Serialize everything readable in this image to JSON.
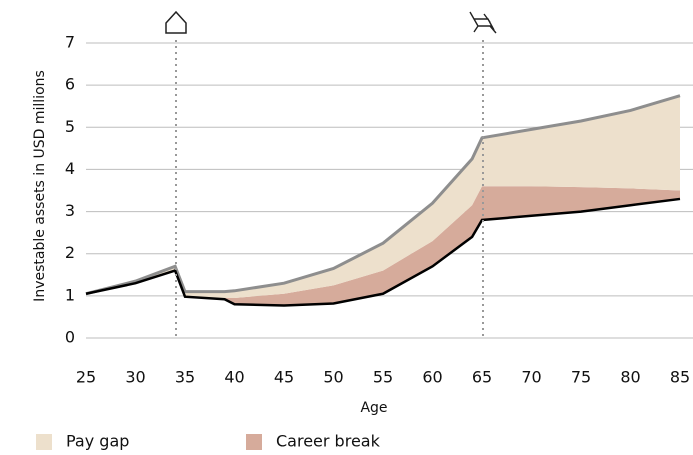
{
  "chart_data": {
    "type": "stacked_area",
    "x_label": "Age",
    "y_label": "Investable assets in USD millions",
    "x": [
      25,
      30,
      34,
      35,
      39,
      40,
      45,
      50,
      55,
      60,
      64,
      65,
      70,
      75,
      80,
      85
    ],
    "baseline": {
      "color": "#000000",
      "values": [
        1.05,
        1.3,
        1.6,
        0.98,
        0.92,
        0.8,
        0.77,
        0.82,
        1.05,
        1.7,
        2.4,
        2.8,
        2.9,
        3.0,
        3.15,
        3.3
      ]
    },
    "series": [
      {
        "name": "Career break",
        "color": "#d6ab9b",
        "values": [
          0,
          0,
          0,
          0,
          0.03,
          0.15,
          0.28,
          0.43,
          0.55,
          0.6,
          0.75,
          0.8,
          0.7,
          0.58,
          0.4,
          0.2
        ]
      },
      {
        "name": "Pay gap",
        "color": "#ede0cc",
        "line_color": "#8e8e8e",
        "values": [
          0,
          0.05,
          0.1,
          0.12,
          0.15,
          0.17,
          0.25,
          0.4,
          0.65,
          0.9,
          1.1,
          1.15,
          1.35,
          1.57,
          1.85,
          2.25
        ]
      }
    ],
    "legend_order": [
      1,
      0
    ],
    "xlim": [
      25,
      85
    ],
    "xticks": [
      25,
      30,
      35,
      40,
      45,
      50,
      55,
      60,
      65,
      70,
      75,
      80,
      85
    ],
    "ylim": [
      0,
      7
    ],
    "yticks": [
      0,
      1,
      2,
      3,
      4,
      5,
      6,
      7
    ],
    "grid": true
  }
}
